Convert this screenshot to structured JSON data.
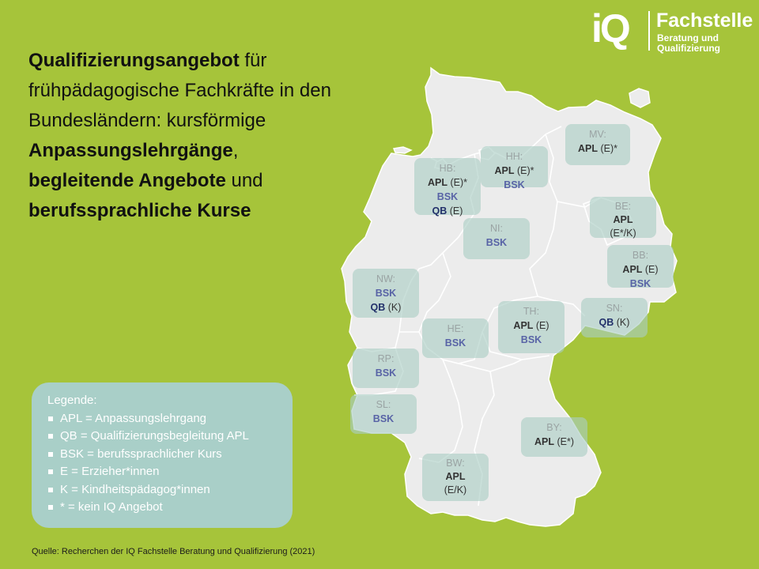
{
  "logo": {
    "mark": "iQ",
    "title": "Fachstelle",
    "sub_line1": "Beratung und",
    "sub_line2": "Qualifizierung"
  },
  "headline": {
    "p1_bold": "Qualifizierungsangebot",
    "p1_rest": " für frühpädagogische Fachkräfte in den Bundesländern: kursförmige",
    "p2_bold": "Anpassungslehrgänge",
    "p2_rest": ",",
    "p3_bold": "begleitende Angebote",
    "p3_rest": " und",
    "p4_bold": "berufssprachliche Kurse"
  },
  "states": {
    "mv": {
      "code": "MV:",
      "apl": "APL",
      "apl_suffix": " (E)*"
    },
    "hh": {
      "code": "HH:",
      "apl": "APL",
      "apl_suffix": " (E)*",
      "bsk": "BSK"
    },
    "hb": {
      "code": "HB:",
      "apl": "APL",
      "apl_suffix": " (E)*",
      "bsk": "BSK",
      "qb": "QB",
      "qb_suffix": " (E)"
    },
    "be": {
      "code": "BE:",
      "apl": "APL",
      "extra": "(E*/K)"
    },
    "ni": {
      "code": "NI:",
      "bsk": "BSK"
    },
    "bb": {
      "code": "BB:",
      "apl": "APL",
      "apl_suffix": " (E)",
      "bsk": "BSK"
    },
    "nw": {
      "code": "NW:",
      "bsk": "BSK",
      "qb": "QB",
      "qb_suffix": " (K)"
    },
    "sn": {
      "code": "SN:",
      "qb": "QB",
      "qb_suffix": " (K)"
    },
    "th": {
      "code": "TH:",
      "apl": "APL",
      "apl_suffix": " (E)",
      "bsk": "BSK"
    },
    "he": {
      "code": "HE:",
      "bsk": "BSK"
    },
    "rp": {
      "code": "RP:",
      "bsk": "BSK"
    },
    "sl": {
      "code": "SL:",
      "bsk": "BSK"
    },
    "by": {
      "code": "BY:",
      "apl": "APL",
      "apl_suffix": " (E*)"
    },
    "bw": {
      "code": "BW:",
      "apl": "APL",
      "extra": "(E/K)"
    }
  },
  "legend": {
    "title": "Legende:",
    "items": [
      "APL = Anpassungslehrgang",
      "QB = Qualifizierungsbegleitung APL",
      "BSK = berufssprachlicher Kurs",
      "E = Erzieher*innen",
      "K = Kindheitspädagog*innen",
      "* = kein IQ Angebot"
    ]
  },
  "source": "Quelle: Recherchen der IQ Fachstelle Beratung und Qualifizierung (2021)",
  "colors": {
    "background": "#a6c43a",
    "map_fill": "#ececec",
    "box": "#aacdc3",
    "bsk": "#5863a6",
    "qb": "#22306a"
  }
}
